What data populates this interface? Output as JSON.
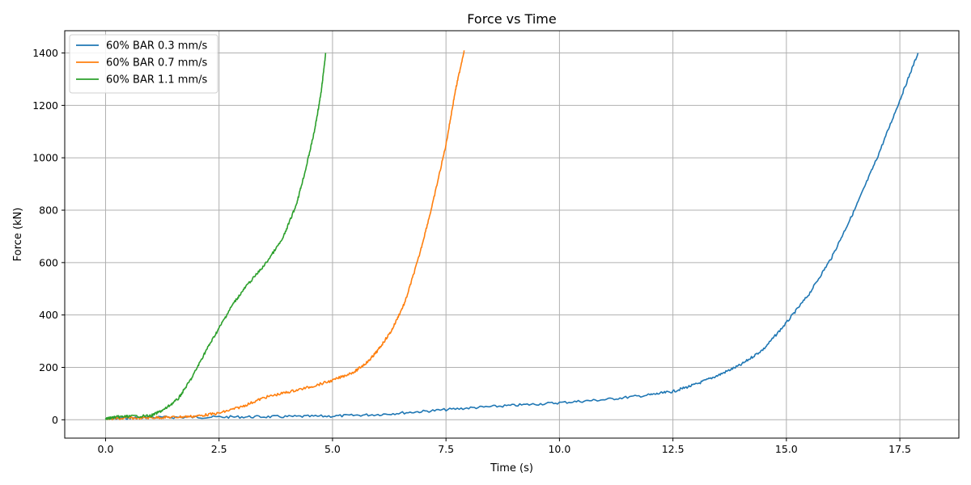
{
  "chart_data": {
    "type": "line",
    "title": "Force vs Time",
    "xlabel": "Time (s)",
    "ylabel": "Force (kN)",
    "xlim": [
      -0.9,
      18.8
    ],
    "ylim": [
      -70,
      1485
    ],
    "xticks": [
      0.0,
      2.5,
      5.0,
      7.5,
      10.0,
      12.5,
      15.0,
      17.5
    ],
    "xtick_labels": [
      "0.0",
      "2.5",
      "5.0",
      "7.5",
      "10.0",
      "12.5",
      "15.0",
      "17.5"
    ],
    "yticks": [
      0,
      200,
      400,
      600,
      800,
      1000,
      1200,
      1400
    ],
    "ytick_labels": [
      "0",
      "200",
      "400",
      "600",
      "800",
      "1000",
      "1200",
      "1400"
    ],
    "grid": true,
    "legend_position": "top-left",
    "series": [
      {
        "name": "60% BAR 0.3 mm/s",
        "color": "#1f77b4",
        "x": [
          0,
          0.5,
          1,
          2,
          3,
          4,
          5,
          6,
          7,
          8,
          9,
          10,
          11,
          12,
          12.5,
          13,
          13.5,
          14,
          14.5,
          15,
          15.5,
          16,
          16.5,
          17,
          17.5,
          17.9
        ],
        "y": [
          3,
          7,
          9,
          10,
          11,
          12,
          14,
          20,
          32,
          45,
          55,
          65,
          77,
          95,
          108,
          135,
          170,
          210,
          270,
          370,
          480,
          620,
          800,
          1000,
          1220,
          1400
        ]
      },
      {
        "name": "60% BAR 0.7 mm/s",
        "color": "#ff7f0e",
        "x": [
          0,
          0.5,
          1,
          1.5,
          2,
          2.5,
          3,
          3.5,
          4,
          4.5,
          5,
          5.5,
          5.8,
          6,
          6.3,
          6.6,
          6.9,
          7.2,
          7.5,
          7.7,
          7.9
        ],
        "y": [
          3,
          6,
          8,
          10,
          14,
          25,
          50,
          85,
          105,
          125,
          150,
          185,
          225,
          265,
          340,
          450,
          620,
          820,
          1050,
          1250,
          1410
        ]
      },
      {
        "name": "60% BAR 1.1 mm/s",
        "color": "#2ca02c",
        "x": [
          0,
          0.2,
          0.5,
          1,
          1.3,
          1.6,
          1.9,
          2.2,
          2.5,
          2.8,
          3.1,
          3.5,
          3.9,
          4.2,
          4.4,
          4.6,
          4.75,
          4.85
        ],
        "y": [
          3,
          10,
          13,
          15,
          40,
          80,
          160,
          260,
          350,
          440,
          510,
          590,
          690,
          820,
          950,
          1100,
          1250,
          1400
        ]
      }
    ]
  }
}
